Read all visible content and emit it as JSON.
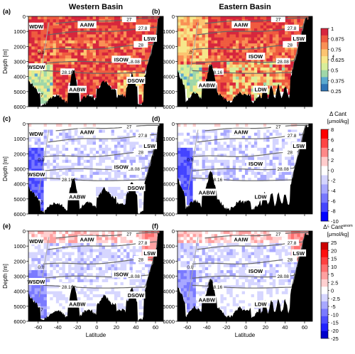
{
  "chart_data": {
    "type": "heatmap",
    "column_titles": [
      "Western Basin",
      "Eastern Basin"
    ],
    "xlabel": "Latitude",
    "ylabel": "Depth [m]",
    "xlim": [
      -70,
      68
    ],
    "ylim": [
      6000,
      0
    ],
    "xticks": [
      -60,
      -40,
      -20,
      0,
      20,
      40,
      60
    ],
    "yticks": [
      0,
      1000,
      2000,
      3000,
      4000,
      5000,
      6000
    ],
    "panels": [
      {
        "id": "(a)",
        "basin": "Western Basin",
        "colorbar": "f",
        "water_masses": [
          "WDW",
          "AAIW",
          "LSW",
          "ISOW",
          "WSDW",
          "DSOW",
          "AABW"
        ],
        "isolines": [
          "27",
          "27.8",
          "28",
          "28.08",
          "28.16",
          "0.0",
          "-0.7"
        ]
      },
      {
        "id": "(b)",
        "basin": "Eastern Basin",
        "colorbar": "f",
        "water_masses": [
          "AAIW",
          "LSW",
          "ISOW",
          "AABW",
          "LDW"
        ],
        "isolines": [
          "27",
          "27.8",
          "28",
          "28.08",
          "28.16",
          ".0"
        ]
      },
      {
        "id": "(c)",
        "basin": "Western Basin",
        "colorbar": "dcant",
        "water_masses": [
          "WDW",
          "AAIW",
          "LSW",
          "ISOW",
          "WSDW",
          "DSOW",
          "AABW"
        ],
        "isolines": [
          "27",
          "27.8",
          "28",
          "28.08",
          "28.16",
          "0.0",
          "-0.7"
        ]
      },
      {
        "id": "(d)",
        "basin": "Eastern Basin",
        "colorbar": "dcant",
        "water_masses": [
          "AAIW",
          "LSW",
          "ISOW",
          "AABW",
          "LDW"
        ],
        "isolines": [
          "27",
          "27.8",
          "28",
          "28.08",
          "28.16",
          "0.0"
        ]
      },
      {
        "id": "(e)",
        "basin": "Western Basin",
        "colorbar": "anom",
        "water_masses": [
          "WDW",
          "AAIW",
          "LSW",
          "ISOW",
          "WSDW",
          "DSOW",
          "AABW"
        ],
        "isolines": [
          "27",
          "27.8",
          "28",
          "28.08",
          "28.16",
          "0.0",
          "-0.7"
        ]
      },
      {
        "id": "(f)",
        "basin": "Eastern Basin",
        "colorbar": "anom",
        "water_masses": [
          "AAIW",
          "LSW",
          "ISOW",
          "AABW",
          "LDW"
        ],
        "isolines": [
          "27",
          "27.8",
          "28",
          "28.08",
          "28.16",
          "0.0"
        ]
      }
    ],
    "colorbars": [
      {
        "key": "f",
        "title": "f",
        "ticks": [
          "1",
          "0.875",
          "0.75",
          "0.625",
          "0.5",
          "0.375",
          "0.25"
        ],
        "colors": [
          "#d7263d",
          "#ef5b3f",
          "#f99055",
          "#fcc470",
          "#f6e78a",
          "#d7ee9a",
          "#9fd7a8",
          "#5aa9cf",
          "#2f74b6"
        ]
      },
      {
        "key": "dcant",
        "title": "Δ Cant",
        "unit": "[μmol/kg]",
        "ticks": [
          "8",
          "6",
          "4",
          "2",
          "0",
          "-2",
          "-4",
          "-6",
          "-8",
          "-10"
        ],
        "colors": [
          "#ff0000",
          "#ff4444",
          "#ff8888",
          "#ffcccc",
          "#ffffff",
          "#d4d4ff",
          "#a8a8ff",
          "#7777ff",
          "#4444ff",
          "#0000ff"
        ]
      },
      {
        "key": "anom",
        "title": "Δ⁵ Cant",
        "title_sup": "anom",
        "unit": "[μmol/kg]",
        "ticks": [
          "25",
          "20",
          "15",
          "10",
          "5",
          "2.5",
          "0",
          "-2.5",
          "-5",
          "-10",
          "-15",
          "-20",
          "-25"
        ],
        "colors": [
          "#cc0000",
          "#ff1010",
          "#ff4040",
          "#ff7070",
          "#ffa0a0",
          "#ffd0d0",
          "#ffffff",
          "#d6d6ff",
          "#a8a8ff",
          "#7a7aff",
          "#4d4dff",
          "#2020ff",
          "#0000cc"
        ]
      }
    ]
  }
}
